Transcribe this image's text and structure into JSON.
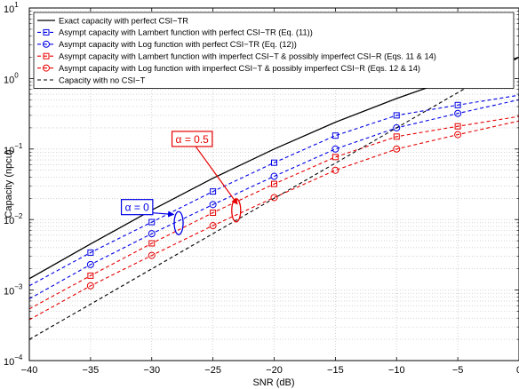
{
  "chart_data": {
    "type": "line",
    "xlabel": "SNR (dB)",
    "ylabel": "Capacity (npcu)",
    "xlim": [
      -40,
      0
    ],
    "ylim": [
      0.0001,
      10
    ],
    "yscale": "log",
    "grid": true,
    "legend_position": "top-left",
    "x_ticks": [
      "−40",
      "−35",
      "−30",
      "−25",
      "−20",
      "−15",
      "−10",
      "−5",
      "0"
    ],
    "y_ticks": [
      {
        "base": "10",
        "exp": "−4"
      },
      {
        "base": "10",
        "exp": "−3"
      },
      {
        "base": "10",
        "exp": "−2"
      },
      {
        "base": "10",
        "exp": "−1"
      },
      {
        "base": "10",
        "exp": "0"
      },
      {
        "base": "10",
        "exp": "1"
      }
    ],
    "series": [
      {
        "name": "Exact capacity with perfect CSI−TR",
        "color": "#000000",
        "dash": "solid",
        "marker": "none",
        "x": [
          -40,
          -35,
          -30,
          -25,
          -20,
          -15,
          -10,
          -5,
          0
        ],
        "y": [
          0.00145,
          0.0045,
          0.0136,
          0.0385,
          0.1,
          0.24,
          0.52,
          1.05,
          2.0
        ]
      },
      {
        "name": "Asympt capacity with Lambert function with perfect CSI−TR (Eq. (11))",
        "color": "#0000e6",
        "dash": "dashed",
        "marker": "square",
        "x": [
          -40,
          -35,
          -30,
          -25,
          -20,
          -15,
          -10,
          -5,
          0
        ],
        "y": [
          0.00115,
          0.0034,
          0.0092,
          0.025,
          0.064,
          0.155,
          0.3,
          0.42,
          0.58
        ]
      },
      {
        "name": "Asympt capacity with Log function with perfect CSI−TR (Eq. (12))",
        "color": "#0000e6",
        "dash": "dashed",
        "marker": "circle",
        "x": [
          -40,
          -35,
          -30,
          -25,
          -20,
          -15,
          -10,
          -5,
          0
        ],
        "y": [
          0.00075,
          0.0023,
          0.0063,
          0.0163,
          0.041,
          0.1,
          0.2,
          0.32,
          0.5
        ]
      },
      {
        "name": "Asympt capacity with Lambert function with imperfect CSI−T & possibly imperfect CSI−R  (Eqs. 11 & 14)",
        "color": "#e60000",
        "dash": "dashed",
        "marker": "square",
        "x": [
          -40,
          -35,
          -30,
          -25,
          -20,
          -15,
          -10,
          -5,
          0
        ],
        "y": [
          0.00054,
          0.0016,
          0.0046,
          0.0125,
          0.032,
          0.077,
          0.15,
          0.21,
          0.29
        ]
      },
      {
        "name": "Asympt capacity with Log function with imperfect CSI−T & possibly imperfect CSI−R  (Eqs. 12 & 14)",
        "color": "#e60000",
        "dash": "dashed",
        "marker": "circle",
        "x": [
          -40,
          -35,
          -30,
          -25,
          -20,
          -15,
          -10,
          -5,
          0
        ],
        "y": [
          0.00038,
          0.00115,
          0.0031,
          0.0082,
          0.0205,
          0.05,
          0.1,
          0.16,
          0.25
        ]
      },
      {
        "name": "Capacity with no CSI−T",
        "color": "#000000",
        "dash": "dashed",
        "marker": "none",
        "x": [
          -40,
          -35,
          -30,
          -25,
          -20,
          -15,
          -10,
          -5,
          0
        ],
        "y": [
          0.0002,
          0.00063,
          0.002,
          0.0063,
          0.02,
          0.063,
          0.2,
          0.63,
          2.0
        ]
      }
    ],
    "annotations": [
      {
        "text": "α = 0",
        "color": "#0000e6",
        "box_x": -31.2,
        "box_y": 0.0148,
        "arrow_to_x": -28.2,
        "arrow_to_y": 0.0118,
        "ellipse_x": -27.8,
        "ellipse_y": 0.0089
      },
      {
        "text": "α = 0.5",
        "color": "#e60000",
        "box_x": -26.7,
        "box_y": 0.137,
        "arrow_to_x": -23.0,
        "arrow_to_y": 0.0165,
        "ellipse_x": -23.1,
        "ellipse_y": 0.0135
      }
    ]
  }
}
